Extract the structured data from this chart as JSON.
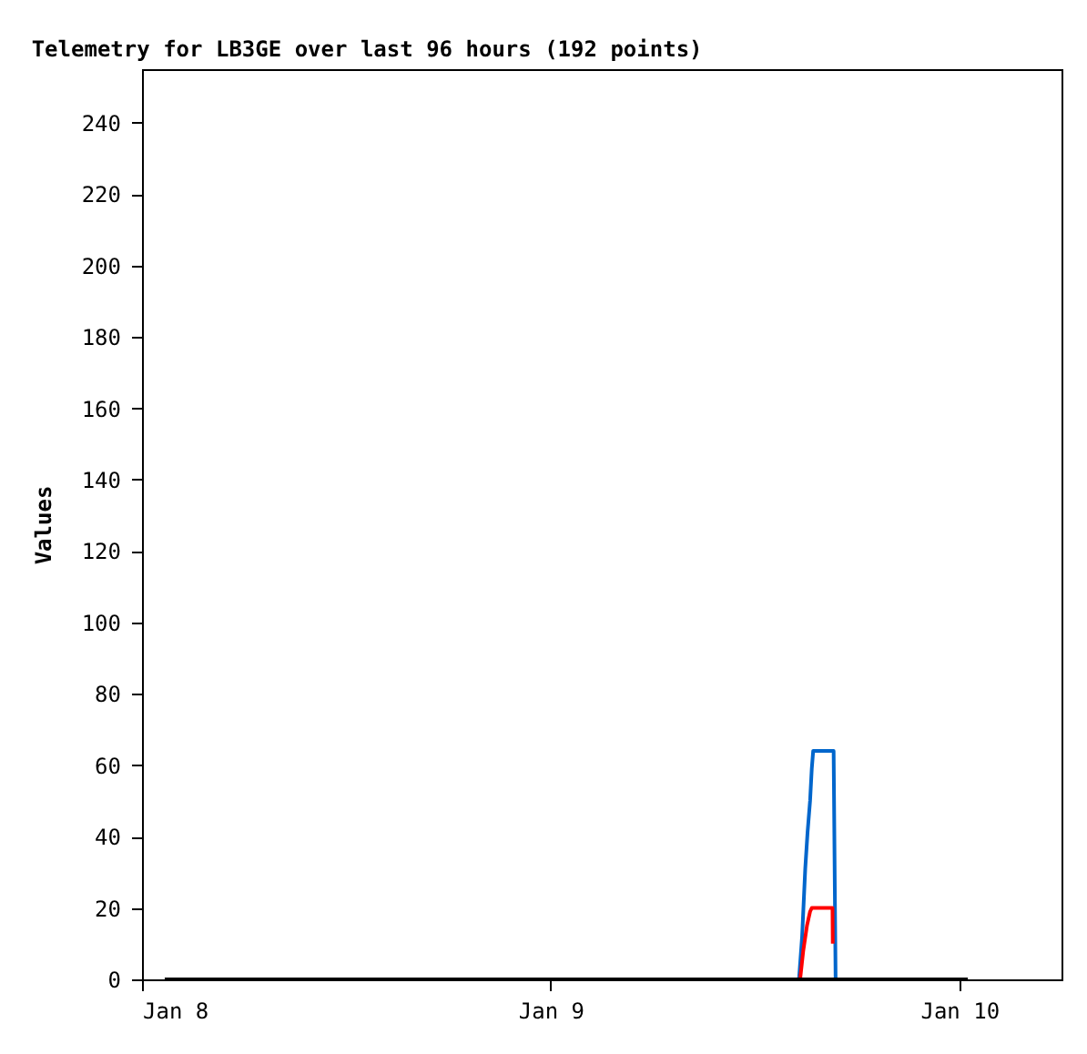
{
  "chart_data": {
    "type": "line",
    "title": "Telemetry for LB3GE over last 96 hours (192 points)",
    "ylabel": "Values",
    "xlim": [
      "--01-08T00:00",
      "--01-10T06:00"
    ],
    "xticks": [
      {
        "value": "--01-08",
        "label": "Jan 8"
      },
      {
        "value": "--01-09",
        "label": "Jan 9"
      },
      {
        "value": "--01-10",
        "label": "Jan 10"
      }
    ],
    "ylim": [
      0,
      255
    ],
    "yticks": [
      0,
      20,
      40,
      60,
      80,
      100,
      120,
      140,
      160,
      180,
      200,
      220,
      240
    ],
    "grid": false,
    "legend": false,
    "marker": "none",
    "line_style": "solid",
    "series": [
      {
        "color": "#0066cc",
        "x": [
          "--01-09T14:30",
          "--01-09T14:35",
          "--01-09T14:46",
          "--01-09T14:57",
          "--01-09T15:05",
          "--01-09T15:14",
          "--01-09T15:20",
          "--01-09T15:25",
          "--01-09T16:37",
          "--01-09T16:44"
        ],
        "values": [
          0,
          0,
          12,
          31,
          41,
          50,
          59,
          64,
          64,
          0
        ]
      },
      {
        "color": "#ff0000",
        "x": [
          "--01-09T14:39",
          "--01-09T14:50",
          "--01-09T15:03",
          "--01-09T15:14",
          "--01-09T15:20",
          "--01-09T16:33",
          "--01-09T16:34"
        ],
        "values": [
          0,
          8,
          15,
          19,
          20,
          20,
          10
        ]
      },
      {
        "color": "#000000",
        "x": [
          "--01-08T01:20",
          "--01-10T00:30"
        ],
        "values": [
          0,
          0
        ]
      }
    ]
  }
}
